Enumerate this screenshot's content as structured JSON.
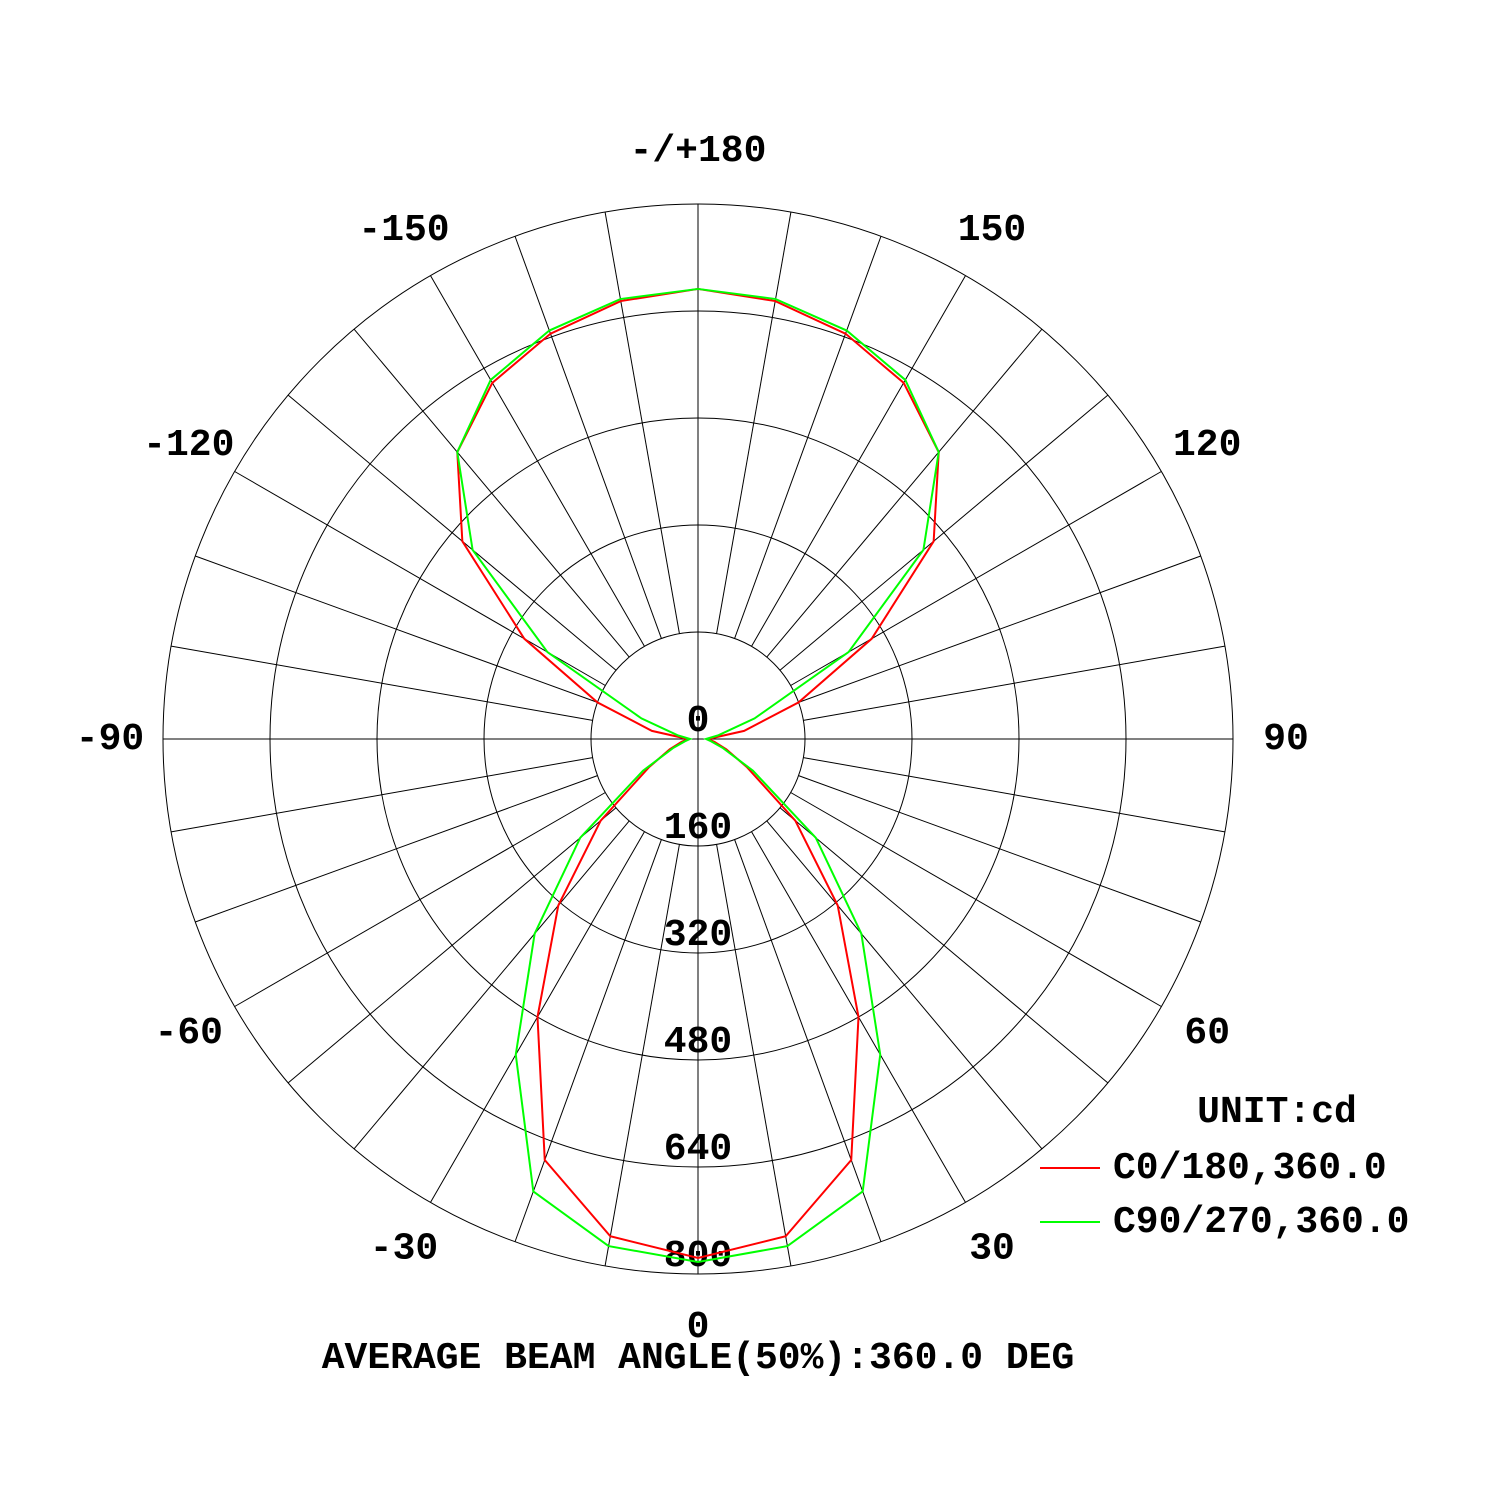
{
  "chart_data": {
    "type": "polar",
    "subtitle": "UNIT:cd",
    "footer": "AVERAGE BEAM ANGLE(50%):360.0 DEG",
    "angles": [
      -180,
      -170,
      -160,
      -150,
      -140,
      -130,
      -120,
      -110,
      -100,
      -90,
      -80,
      -70,
      -60,
      -50,
      -40,
      -30,
      -20,
      -10,
      0,
      10,
      20,
      30,
      40,
      50,
      60,
      70,
      80,
      90,
      100,
      110,
      120,
      130,
      140,
      150,
      160,
      170,
      180
    ],
    "series": [
      {
        "name": "C0/180,360.0",
        "color": "#ff0000",
        "values": [
          673,
          665,
          645,
          615,
          560,
          460,
          300,
          160,
          70,
          15,
          25,
          45,
          85,
          190,
          325,
          480,
          670,
          755,
          776,
          755,
          670,
          480,
          325,
          190,
          85,
          45,
          25,
          15,
          70,
          160,
          300,
          460,
          560,
          615,
          645,
          665,
          673
        ]
      },
      {
        "name": "C90/270,360.0",
        "color": "#00ff00",
        "values": [
          673,
          668,
          650,
          620,
          560,
          440,
          260,
          90,
          30,
          12,
          20,
          40,
          95,
          230,
          380,
          545,
          720,
          770,
          782,
          770,
          720,
          545,
          380,
          230,
          95,
          40,
          20,
          12,
          30,
          90,
          260,
          440,
          560,
          620,
          650,
          668,
          673
        ]
      }
    ],
    "rlim": [
      0,
      800
    ],
    "rticks": [
      0,
      160,
      320,
      480,
      640,
      800
    ],
    "angle_ticks": [
      {
        "value": 180,
        "label": "-/+180"
      },
      -150,
      150,
      -120,
      120,
      -90,
      90,
      -60,
      60,
      -30,
      30,
      0
    ],
    "angle_grid_step": 10
  }
}
